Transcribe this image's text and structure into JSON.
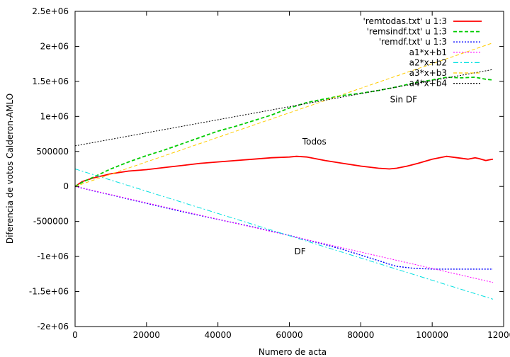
{
  "chart_data": {
    "type": "line",
    "title": "",
    "xlabel": "Numero de acta",
    "ylabel": "Diferencia de votos Calderon-AMLO",
    "xlim": [
      0,
      120000
    ],
    "ylim": [
      -2000000,
      2500000
    ],
    "xticks": [
      {
        "value": 0,
        "label": "0"
      },
      {
        "value": 20000,
        "label": "20000"
      },
      {
        "value": 40000,
        "label": "40000"
      },
      {
        "value": 60000,
        "label": "60000"
      },
      {
        "value": 80000,
        "label": "80000"
      },
      {
        "value": 100000,
        "label": "100000"
      },
      {
        "value": 120000,
        "label": "120000"
      }
    ],
    "yticks": [
      {
        "value": -2000000,
        "label": "-2e+06"
      },
      {
        "value": -1500000,
        "label": "-1.5e+06"
      },
      {
        "value": -1000000,
        "label": "-1e+06"
      },
      {
        "value": -500000,
        "label": "-500000"
      },
      {
        "value": 0,
        "label": "0"
      },
      {
        "value": 500000,
        "label": "500000"
      },
      {
        "value": 1000000,
        "label": "1e+06"
      },
      {
        "value": 1500000,
        "label": "1.5e+06"
      },
      {
        "value": 2000000,
        "label": "2e+06"
      },
      {
        "value": 2500000,
        "label": "2.5e+06"
      }
    ],
    "grid": false,
    "legend_position": "top-right",
    "series": [
      {
        "name": "'remtodas.txt' u 1:3",
        "color": "#ff0000",
        "dash": "solid",
        "width": 1.8,
        "x": [
          0,
          2000,
          5000,
          10000,
          15000,
          20000,
          25000,
          30000,
          35000,
          40000,
          45000,
          50000,
          55000,
          60000,
          62000,
          65000,
          70000,
          75000,
          80000,
          85000,
          88000,
          90000,
          93000,
          96000,
          100000,
          104000,
          107000,
          110000,
          112000,
          113000,
          115000,
          116000,
          117000
        ],
        "y": [
          0,
          70000,
          120000,
          180000,
          220000,
          240000,
          270000,
          300000,
          330000,
          350000,
          370000,
          390000,
          410000,
          420000,
          430000,
          420000,
          370000,
          330000,
          290000,
          260000,
          250000,
          260000,
          290000,
          330000,
          390000,
          430000,
          410000,
          390000,
          410000,
          400000,
          370000,
          380000,
          390000
        ]
      },
      {
        "name": "'remsindf.txt' u 1:3",
        "color": "#00cc00",
        "dash": "dashed",
        "width": 1.8,
        "x": [
          0,
          2000,
          5000,
          10000,
          15000,
          20000,
          25000,
          30000,
          35000,
          40000,
          45000,
          50000,
          55000,
          60000,
          65000,
          70000,
          75000,
          80000,
          85000,
          90000,
          95000,
          100000,
          104000,
          108000,
          112000,
          115000,
          117000
        ],
        "y": [
          0,
          60000,
          130000,
          250000,
          350000,
          440000,
          520000,
          610000,
          700000,
          790000,
          860000,
          940000,
          1020000,
          1120000,
          1200000,
          1250000,
          1300000,
          1330000,
          1370000,
          1420000,
          1480000,
          1520000,
          1560000,
          1550000,
          1560000,
          1530000,
          1520000
        ]
      },
      {
        "name": "'remdf.txt' u 1:3",
        "color": "#0000ff",
        "dash": "dotted",
        "width": 1.4,
        "x": [
          0,
          5000,
          10000,
          20000,
          30000,
          40000,
          50000,
          60000,
          70000,
          75000,
          80000,
          85000,
          88000,
          90000,
          95000,
          100000,
          105000,
          110000,
          117000
        ],
        "y": [
          0,
          -60000,
          -120000,
          -240000,
          -360000,
          -470000,
          -580000,
          -700000,
          -830000,
          -900000,
          -980000,
          -1060000,
          -1110000,
          -1140000,
          -1170000,
          -1180000,
          -1180000,
          -1180000,
          -1180000
        ]
      },
      {
        "name": "a1*x+b1",
        "color": "#ff00ff",
        "dash": "dotted",
        "width": 1.0,
        "x": [
          0,
          117000
        ],
        "y": [
          0,
          -1370000
        ]
      },
      {
        "name": "a2*x+b2",
        "color": "#00e0e0",
        "dash": "dashdot",
        "width": 1.0,
        "x": [
          0,
          117000
        ],
        "y": [
          250000,
          -1610000
        ]
      },
      {
        "name": "a3*x+b3",
        "color": "#ffcc00",
        "dash": "dashed",
        "width": 1.0,
        "x": [
          0,
          117000
        ],
        "y": [
          0,
          2050000
        ]
      },
      {
        "name": "a4*x+b4",
        "color": "#000000",
        "dash": "dotted",
        "width": 1.0,
        "x": [
          0,
          117000
        ],
        "y": [
          580000,
          1670000
        ]
      }
    ],
    "annotations": [
      {
        "text": "Sin DF",
        "x": 92000,
        "y": 1200000
      },
      {
        "text": "Todos",
        "x": 67000,
        "y": 600000
      },
      {
        "text": "DF",
        "x": 63000,
        "y": -970000
      }
    ]
  }
}
